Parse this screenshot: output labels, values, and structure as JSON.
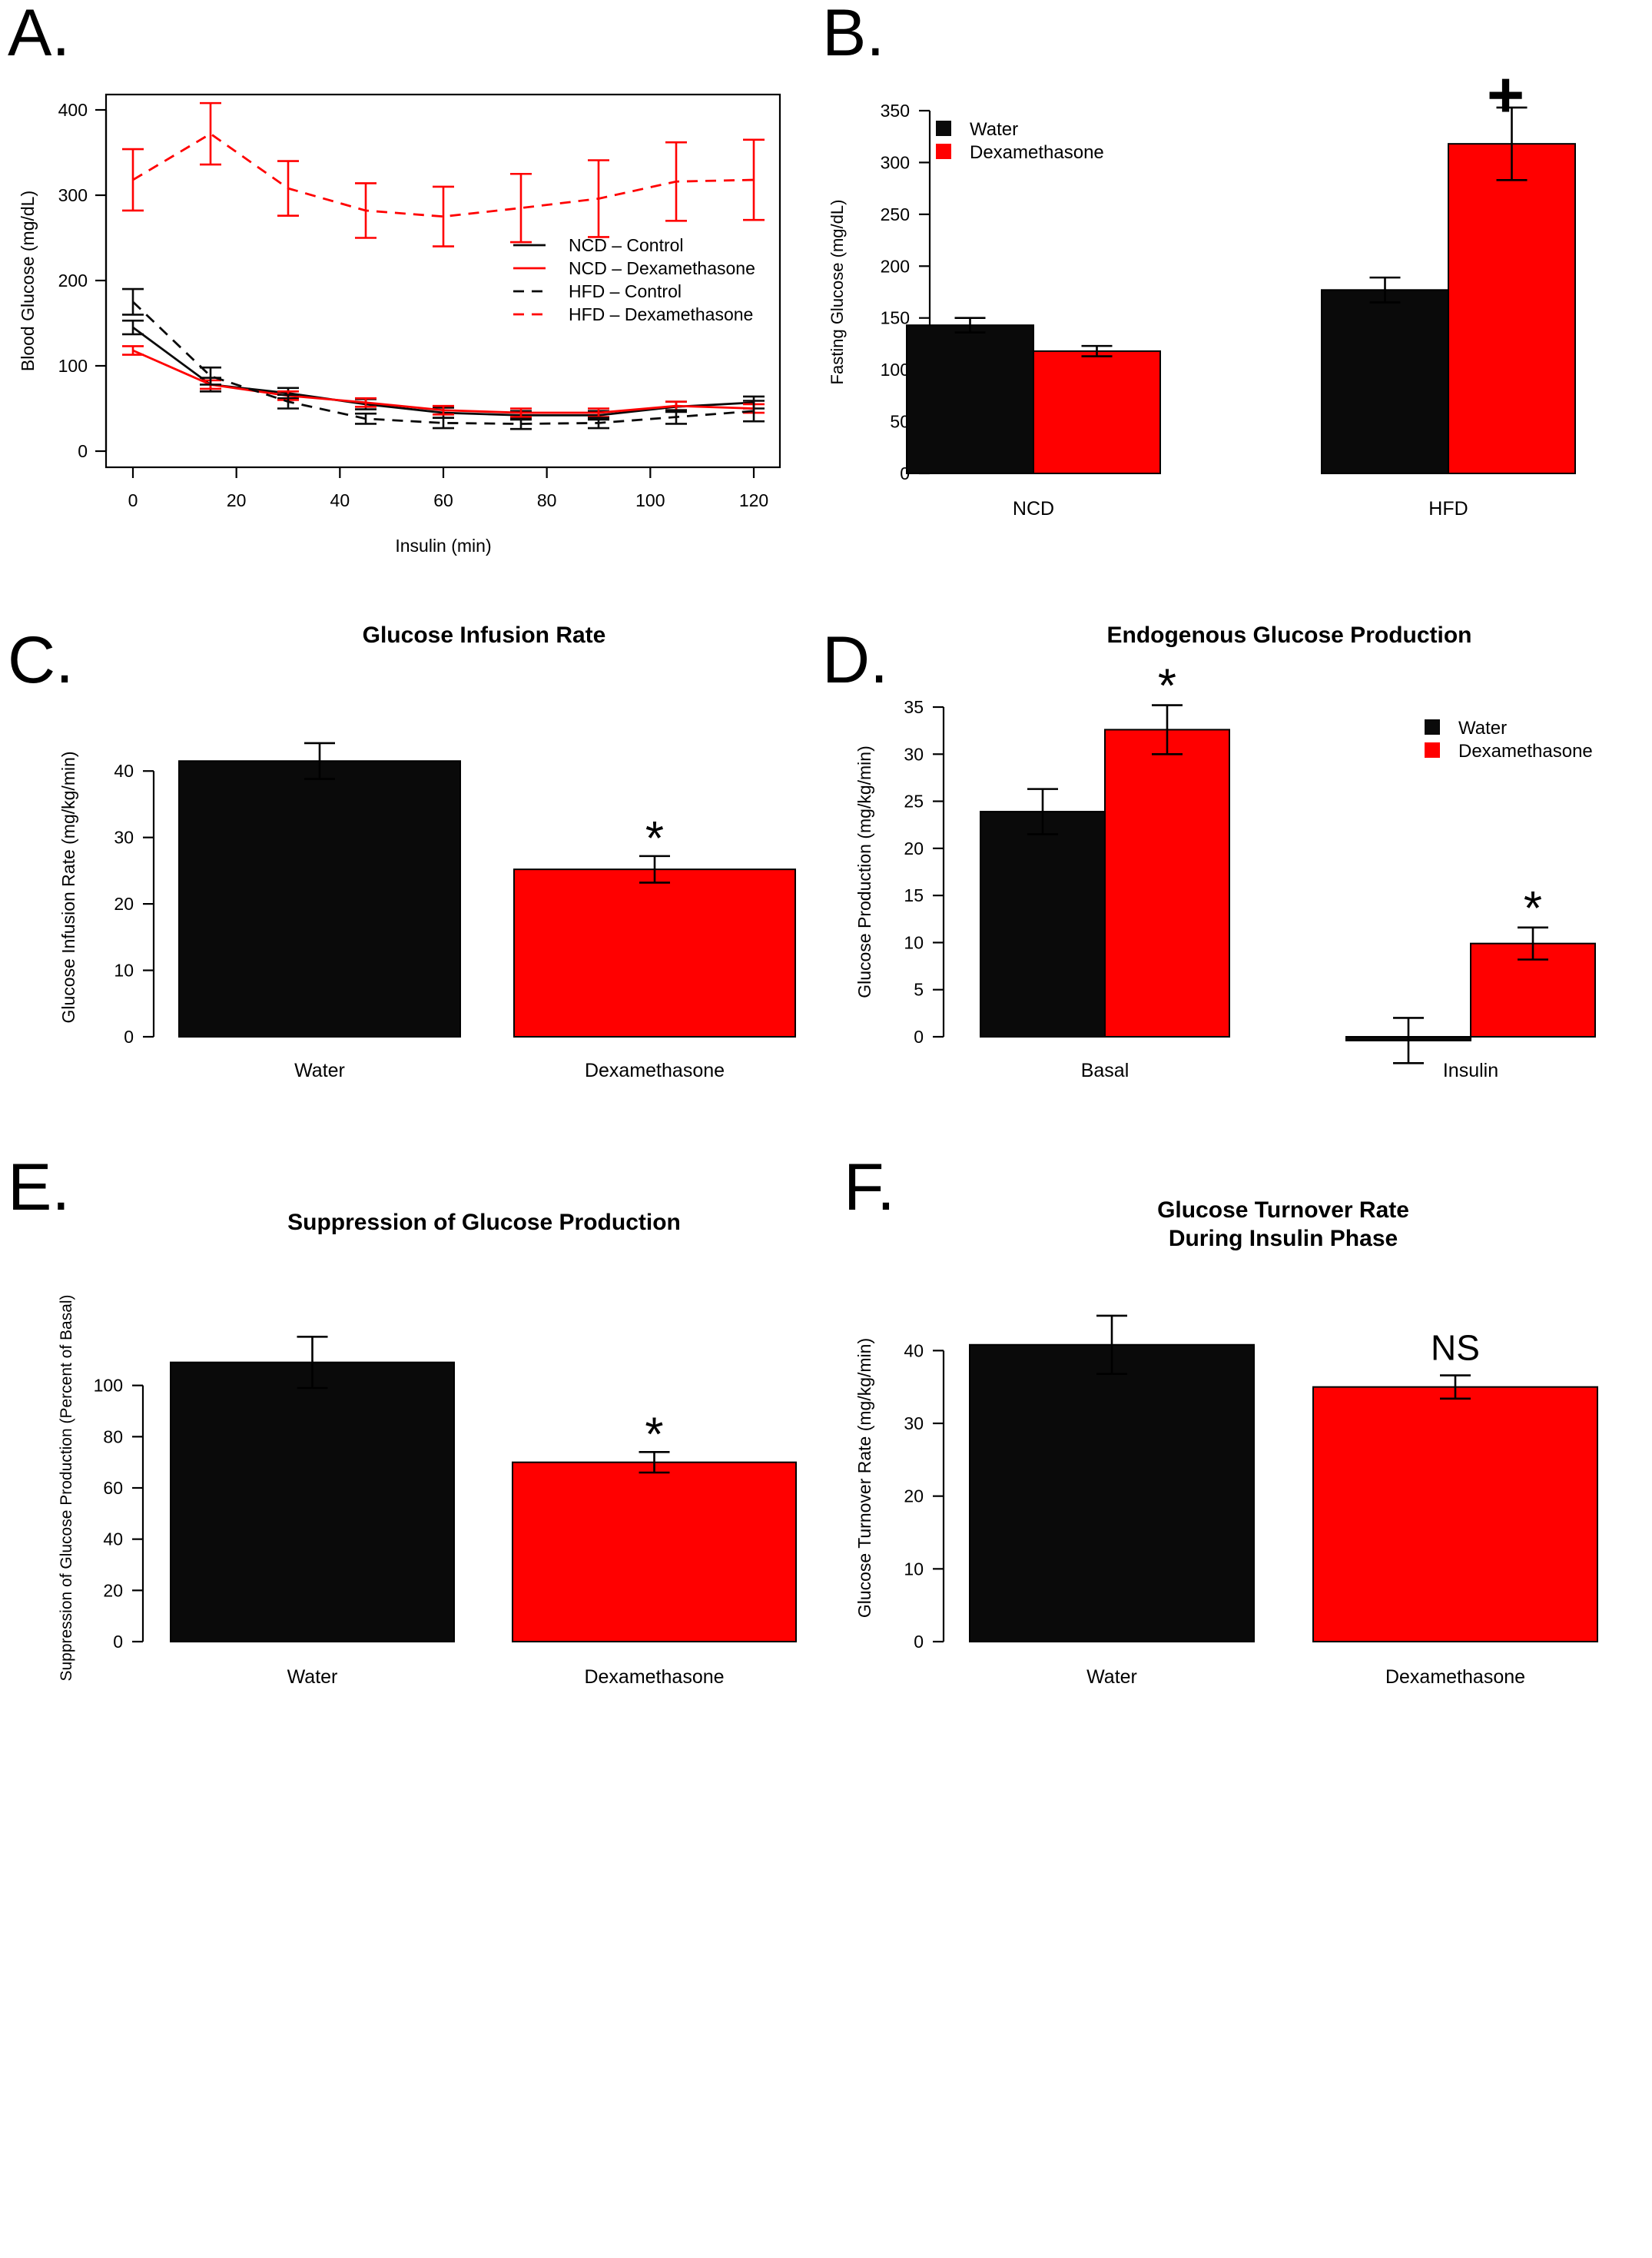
{
  "colors": {
    "black": "#0a0a0a",
    "red": "#ff0000",
    "axis": "#000000"
  },
  "chart_data": [
    {
      "panel": "A.",
      "type": "line",
      "title": "",
      "xlabel": "Insulin (min)",
      "ylabel": "Blood Glucose (mg/dL)",
      "xlim": [
        0,
        120
      ],
      "ylim": [
        0,
        400
      ],
      "xticks": [
        0,
        20,
        40,
        60,
        80,
        100,
        120
      ],
      "yticks": [
        0,
        100,
        200,
        300,
        400
      ],
      "grid": false,
      "legend_position": "right",
      "x": [
        0,
        15,
        30,
        45,
        60,
        75,
        90,
        105,
        120
      ],
      "series": [
        {
          "name": "NCD – Control",
          "color": "#0a0a0a",
          "dash": "solid",
          "values": [
            145,
            78,
            68,
            55,
            45,
            42,
            42,
            52,
            57
          ],
          "errors": [
            8,
            8,
            6,
            6,
            6,
            5,
            5,
            6,
            7
          ]
        },
        {
          "name": "NCD – Dexamethasone",
          "color": "#ff0000",
          "dash": "solid",
          "values": [
            118,
            78,
            65,
            57,
            48,
            45,
            45,
            53,
            50
          ],
          "errors": [
            5,
            5,
            5,
            5,
            5,
            5,
            5,
            5,
            5
          ]
        },
        {
          "name": "HFD – Control",
          "color": "#0a0a0a",
          "dash": "dashed",
          "values": [
            175,
            88,
            58,
            38,
            33,
            32,
            33,
            40,
            47
          ],
          "errors": [
            15,
            10,
            8,
            6,
            6,
            6,
            6,
            8,
            12
          ]
        },
        {
          "name": "HFD – Dexamethasone",
          "color": "#ff0000",
          "dash": "dashed",
          "values": [
            318,
            372,
            308,
            282,
            275,
            285,
            296,
            316,
            318
          ],
          "errors": [
            36,
            36,
            32,
            32,
            35,
            40,
            45,
            46,
            47
          ]
        }
      ]
    },
    {
      "panel": "B.",
      "type": "bar",
      "title": "",
      "xlabel": "",
      "ylabel": "Fasting Glucose (mg/dL)",
      "ylim": [
        0,
        350
      ],
      "yticks": [
        0,
        50,
        100,
        150,
        200,
        250,
        300,
        350
      ],
      "grid": false,
      "legend_position": "top-left",
      "categories": [
        "NCD",
        "HFD"
      ],
      "series": [
        {
          "name": "Water",
          "color": "#0a0a0a",
          "values": [
            143,
            177
          ],
          "errors": [
            7,
            12
          ]
        },
        {
          "name": "Dexamethasone",
          "color": "#ff0000",
          "values": [
            118,
            318
          ],
          "errors": [
            5,
            35
          ]
        }
      ],
      "annotations": [
        {
          "text": "+",
          "category": "HFD",
          "series": 1
        }
      ]
    },
    {
      "panel": "C.",
      "type": "bar",
      "title": "Glucose Infusion Rate",
      "xlabel": "",
      "ylabel": "Glucose Infusion Rate (mg/kg/min)",
      "ylim": [
        0,
        45
      ],
      "yticks": [
        0,
        10,
        20,
        30,
        40
      ],
      "grid": false,
      "categories": [
        "Water",
        "Dexamethasone"
      ],
      "values": [
        41.5,
        25.2
      ],
      "errors": [
        2.7,
        2.0
      ],
      "colors": [
        "#0a0a0a",
        "#ff0000"
      ],
      "annotations": [
        {
          "text": "*",
          "index": 1
        }
      ]
    },
    {
      "panel": "D.",
      "type": "bar",
      "title": "Endogenous Glucose Production",
      "xlabel": "",
      "ylabel": "Glucose Production (mg/kg/min)",
      "ylim": [
        0,
        35
      ],
      "yticks": [
        0,
        5,
        10,
        15,
        20,
        25,
        30,
        35
      ],
      "grid": false,
      "legend_position": "top-right",
      "categories": [
        "Basal",
        "Insulin"
      ],
      "series": [
        {
          "name": "Water",
          "color": "#0a0a0a",
          "values": [
            23.9,
            -0.4
          ],
          "errors": [
            2.4,
            2.4
          ]
        },
        {
          "name": "Dexamethasone",
          "color": "#ff0000",
          "values": [
            32.6,
            9.9
          ],
          "errors": [
            2.6,
            1.7
          ]
        }
      ],
      "annotations": [
        {
          "text": "*",
          "category": "Basal",
          "series": 1
        },
        {
          "text": "*",
          "category": "Insulin",
          "series": 1
        }
      ]
    },
    {
      "panel": "E.",
      "type": "bar",
      "title": "Suppression of Glucose Production",
      "xlabel": "",
      "ylabel": "Suppression of Glucose Production (Percent of Basal)",
      "ylim": [
        0,
        120
      ],
      "yticks": [
        0,
        20,
        40,
        60,
        80,
        100
      ],
      "grid": false,
      "categories": [
        "Water",
        "Dexamethasone"
      ],
      "values": [
        109,
        70
      ],
      "errors": [
        10,
        4
      ],
      "colors": [
        "#0a0a0a",
        "#ff0000"
      ],
      "annotations": [
        {
          "text": "*",
          "index": 1
        }
      ]
    },
    {
      "panel": "F.",
      "type": "bar",
      "title": "Glucose Turnover Rate\nDuring Insulin Phase",
      "xlabel": "",
      "ylabel": "Glucose Turnover Rate (mg/kg/min)",
      "ylim": [
        0,
        45
      ],
      "yticks": [
        0,
        10,
        20,
        30,
        40
      ],
      "grid": false,
      "categories": [
        "Water",
        "Dexamethasone"
      ],
      "values": [
        40.8,
        35.0
      ],
      "errors": [
        4.0,
        1.6
      ],
      "colors": [
        "#0a0a0a",
        "#ff0000"
      ],
      "annotations": [
        {
          "text": "NS",
          "index": 1
        }
      ]
    }
  ]
}
